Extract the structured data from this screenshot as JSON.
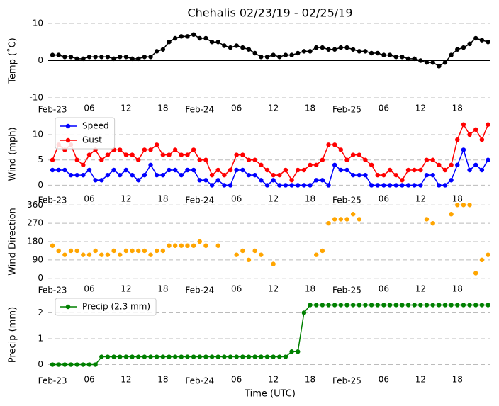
{
  "chart_data": [
    {
      "type": "line",
      "title": "Chehalis 02/23/19 - 02/25/19",
      "ylabel": "Temp (˚C)",
      "x": [
        0,
        1,
        2,
        3,
        4,
        5,
        6,
        7,
        8,
        9,
        10,
        11,
        12,
        13,
        14,
        15,
        16,
        17,
        18,
        19,
        20,
        21,
        22,
        23,
        24,
        25,
        26,
        27,
        28,
        29,
        30,
        31,
        32,
        33,
        34,
        35,
        36,
        37,
        38,
        39,
        40,
        41,
        42,
        43,
        44,
        45,
        46,
        47,
        48,
        49,
        50,
        51,
        52,
        53,
        54,
        55,
        56,
        57,
        58,
        59,
        60,
        61,
        62,
        63,
        64,
        65,
        66,
        67,
        68,
        69,
        70,
        71
      ],
      "series": [
        {
          "color": "#000000",
          "values": [
            1.5,
            1.5,
            1,
            1,
            0.5,
            0.5,
            1,
            1,
            1,
            1,
            0.5,
            1,
            1,
            0.5,
            0.5,
            1,
            1,
            2.5,
            3,
            5,
            6,
            6.5,
            6.5,
            7,
            6,
            6,
            5,
            5,
            4,
            3.5,
            4,
            3.5,
            3,
            2,
            1,
            1,
            1.5,
            1,
            1.5,
            1.5,
            2,
            2.5,
            2.5,
            3.5,
            3.5,
            3,
            3,
            3.5,
            3.5,
            3,
            2.5,
            2.5,
            2,
            2,
            1.5,
            1.5,
            1,
            1,
            0.5,
            0.5,
            0,
            -0.5,
            -0.5,
            -1.5,
            -0.5,
            1.5,
            3,
            3.5,
            4.5,
            6,
            5.5,
            5
          ]
        }
      ],
      "xlim": [
        -0.7,
        71.4
      ],
      "ylim": [
        -10,
        10
      ],
      "yticks": [
        -10,
        0,
        10
      ],
      "hline": 0,
      "grid": true,
      "xticks": [
        {
          "value": 0,
          "label": "Feb-23"
        },
        {
          "value": 6,
          "label": "06"
        },
        {
          "value": 12,
          "label": "12"
        },
        {
          "value": 18,
          "label": "18"
        },
        {
          "value": 24,
          "label": "Feb-24"
        },
        {
          "value": 30,
          "label": "06"
        },
        {
          "value": 36,
          "label": "12"
        },
        {
          "value": 42,
          "label": "18"
        },
        {
          "value": 48,
          "label": "Feb-25"
        },
        {
          "value": 54,
          "label": "06"
        },
        {
          "value": 60,
          "label": "12"
        },
        {
          "value": 66,
          "label": "18"
        }
      ]
    },
    {
      "type": "line",
      "ylabel": "Wind (mph)",
      "legend": "upper left",
      "x": [
        0,
        1,
        2,
        3,
        4,
        5,
        6,
        7,
        8,
        9,
        10,
        11,
        12,
        13,
        14,
        15,
        16,
        17,
        18,
        19,
        20,
        21,
        22,
        23,
        24,
        25,
        26,
        27,
        28,
        29,
        30,
        31,
        32,
        33,
        34,
        35,
        36,
        37,
        38,
        39,
        40,
        41,
        42,
        43,
        44,
        45,
        46,
        47,
        48,
        49,
        50,
        51,
        52,
        53,
        54,
        55,
        56,
        57,
        58,
        59,
        60,
        61,
        62,
        63,
        64,
        65,
        66,
        67,
        68,
        69,
        70,
        71
      ],
      "series": [
        {
          "name": "Speed",
          "color": "#0000ff",
          "values": [
            3,
            3,
            3,
            2,
            2,
            2,
            3,
            1,
            1,
            2,
            3,
            2,
            3,
            2,
            1,
            2,
            4,
            2,
            2,
            3,
            3,
            2,
            3,
            3,
            1,
            1,
            0,
            1,
            0,
            0,
            3,
            3,
            2,
            2,
            1,
            0,
            1,
            0,
            0,
            0,
            0,
            0,
            0,
            1,
            1,
            0,
            4,
            3,
            3,
            2,
            2,
            2,
            0,
            0,
            0,
            0,
            0,
            0,
            0,
            0,
            0,
            2,
            2,
            0,
            0,
            1,
            4,
            7,
            3,
            4,
            3,
            5
          ]
        },
        {
          "name": "Gust",
          "color": "#ff0000",
          "values": [
            5,
            8,
            7,
            8,
            5,
            4,
            6,
            7,
            5,
            6,
            7,
            7,
            6,
            6,
            5,
            7,
            7,
            8,
            6,
            6,
            7,
            6,
            6,
            7,
            5,
            5,
            2,
            3,
            2,
            3,
            6,
            6,
            5,
            5,
            4,
            3,
            2,
            2,
            3,
            1,
            3,
            3,
            4,
            4,
            5,
            8,
            8,
            7,
            5,
            6,
            6,
            5,
            4,
            2,
            2,
            3,
            2,
            1,
            3,
            3,
            3,
            5,
            5,
            4,
            3,
            4,
            9,
            12,
            10,
            11,
            9,
            12
          ]
        }
      ],
      "xlim": [
        -0.7,
        71.4
      ],
      "ylim": [
        -0.5,
        12.8
      ],
      "yticks": [
        0,
        5,
        10
      ],
      "grid": true,
      "xticks": [
        {
          "value": 0,
          "label": "Feb-23"
        },
        {
          "value": 6,
          "label": "06"
        },
        {
          "value": 12,
          "label": "12"
        },
        {
          "value": 18,
          "label": "18"
        },
        {
          "value": 24,
          "label": "Feb-24"
        },
        {
          "value": 30,
          "label": "06"
        },
        {
          "value": 36,
          "label": "12"
        },
        {
          "value": 42,
          "label": "18"
        },
        {
          "value": 48,
          "label": "Feb-25"
        },
        {
          "value": 54,
          "label": "06"
        },
        {
          "value": 60,
          "label": "12"
        },
        {
          "value": 66,
          "label": "18"
        }
      ]
    },
    {
      "type": "scatter",
      "ylabel": "Wind Direction",
      "x": [
        0,
        1,
        2,
        3,
        4,
        5,
        6,
        7,
        8,
        9,
        10,
        11,
        12,
        13,
        14,
        15,
        16,
        17,
        18,
        19,
        20,
        21,
        22,
        23,
        24,
        25,
        26,
        27,
        28,
        29,
        30,
        31,
        32,
        33,
        34,
        35,
        36,
        37,
        38,
        39,
        40,
        41,
        42,
        43,
        44,
        45,
        46,
        47,
        48,
        49,
        50,
        51,
        52,
        53,
        54,
        55,
        56,
        57,
        58,
        59,
        60,
        61,
        62,
        63,
        64,
        65,
        66,
        67,
        68,
        69,
        70,
        71
      ],
      "series": [
        {
          "color": "#ffa500",
          "values": [
            160,
            135,
            115,
            135,
            135,
            115,
            115,
            135,
            115,
            115,
            135,
            115,
            135,
            135,
            135,
            135,
            115,
            135,
            135,
            160,
            160,
            160,
            160,
            160,
            180,
            160,
            null,
            160,
            null,
            null,
            115,
            135,
            90,
            135,
            115,
            null,
            70,
            null,
            null,
            null,
            null,
            null,
            null,
            115,
            135,
            270,
            290,
            290,
            290,
            315,
            290,
            null,
            null,
            null,
            null,
            null,
            null,
            null,
            null,
            null,
            null,
            290,
            270,
            null,
            null,
            315,
            360,
            360,
            360,
            25,
            90,
            115
          ]
        }
      ],
      "xlim": [
        -0.7,
        71.4
      ],
      "ylim": [
        -8,
        368
      ],
      "yticks": [
        0,
        90,
        180,
        270,
        360
      ],
      "grid": true,
      "xticks": [
        {
          "value": 0,
          "label": "Feb-23"
        },
        {
          "value": 6,
          "label": "06"
        },
        {
          "value": 12,
          "label": "12"
        },
        {
          "value": 18,
          "label": "18"
        },
        {
          "value": 24,
          "label": "Feb-24"
        },
        {
          "value": 30,
          "label": "06"
        },
        {
          "value": 36,
          "label": "12"
        },
        {
          "value": 42,
          "label": "18"
        },
        {
          "value": 48,
          "label": "Feb-25"
        },
        {
          "value": 54,
          "label": "06"
        },
        {
          "value": 60,
          "label": "12"
        },
        {
          "value": 66,
          "label": "18"
        }
      ]
    },
    {
      "type": "line",
      "ylabel": "Precip (mm)",
      "xlabel": "Time (UTC)",
      "legend": "upper left",
      "x": [
        0,
        1,
        2,
        3,
        4,
        5,
        6,
        7,
        8,
        9,
        10,
        11,
        12,
        13,
        14,
        15,
        16,
        17,
        18,
        19,
        20,
        21,
        22,
        23,
        24,
        25,
        26,
        27,
        28,
        29,
        30,
        31,
        32,
        33,
        34,
        35,
        36,
        37,
        38,
        39,
        40,
        41,
        42,
        43,
        44,
        45,
        46,
        47,
        48,
        49,
        50,
        51,
        52,
        53,
        54,
        55,
        56,
        57,
        58,
        59,
        60,
        61,
        62,
        63,
        64,
        65,
        66,
        67,
        68,
        69,
        70,
        71
      ],
      "series": [
        {
          "name": "Precip (2.3 mm)",
          "color": "#008000",
          "values": [
            0,
            0,
            0,
            0,
            0,
            0,
            0,
            0,
            0.3,
            0.3,
            0.3,
            0.3,
            0.3,
            0.3,
            0.3,
            0.3,
            0.3,
            0.3,
            0.3,
            0.3,
            0.3,
            0.3,
            0.3,
            0.3,
            0.3,
            0.3,
            0.3,
            0.3,
            0.3,
            0.3,
            0.3,
            0.3,
            0.3,
            0.3,
            0.3,
            0.3,
            0.3,
            0.3,
            0.3,
            0.5,
            0.5,
            2,
            2.3,
            2.3,
            2.3,
            2.3,
            2.3,
            2.3,
            2.3,
            2.3,
            2.3,
            2.3,
            2.3,
            2.3,
            2.3,
            2.3,
            2.3,
            2.3,
            2.3,
            2.3,
            2.3,
            2.3,
            2.3,
            2.3,
            2.3,
            2.3,
            2.3,
            2.3,
            2.3,
            2.3,
            2.3,
            2.3
          ]
        }
      ],
      "xlim": [
        -0.7,
        71.4
      ],
      "ylim": [
        -0.15,
        2.45
      ],
      "yticks": [
        0,
        1,
        2
      ],
      "grid": true,
      "xticks": [
        {
          "value": 0,
          "label": "Feb-23"
        },
        {
          "value": 6,
          "label": "06"
        },
        {
          "value": 12,
          "label": "12"
        },
        {
          "value": 18,
          "label": "18"
        },
        {
          "value": 24,
          "label": "Feb-24"
        },
        {
          "value": 30,
          "label": "06"
        },
        {
          "value": 36,
          "label": "12"
        },
        {
          "value": 42,
          "label": "18"
        },
        {
          "value": 48,
          "label": "Feb-25"
        },
        {
          "value": 54,
          "label": "06"
        },
        {
          "value": 60,
          "label": "12"
        },
        {
          "value": 66,
          "label": "18"
        }
      ]
    }
  ]
}
